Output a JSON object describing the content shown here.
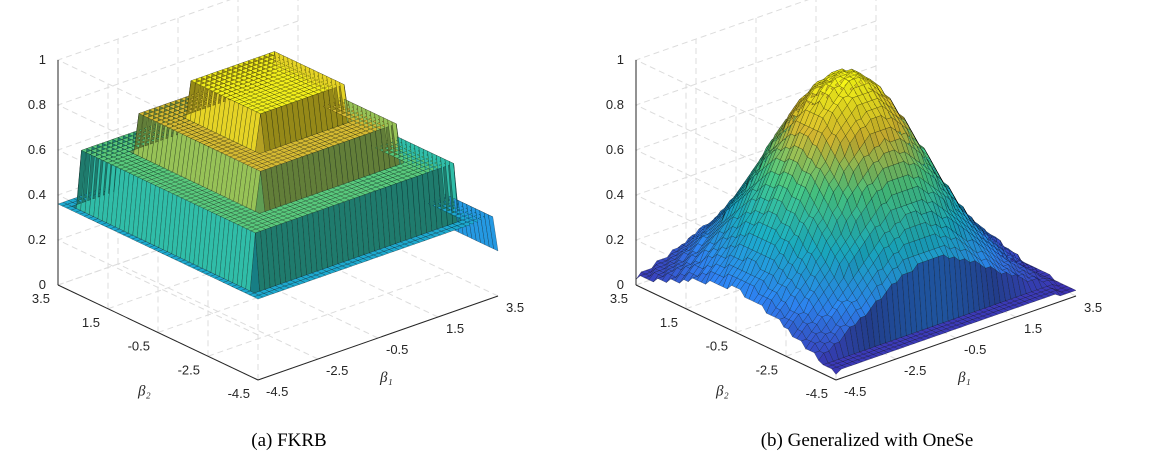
{
  "chart_data": [
    {
      "type": "surface",
      "caption": "(a) FKRB",
      "x_label": "β₁",
      "y_label": "β₂",
      "x_ticks": [
        "-4.5",
        "-2.5",
        "-0.5",
        "1.5",
        "3.5"
      ],
      "y_ticks": [
        "-4.5",
        "-2.5",
        "-0.5",
        "1.5",
        "3.5"
      ],
      "z_ticks": [
        "0",
        "0.2",
        "0.4",
        "0.6",
        "0.8",
        "1"
      ],
      "xlim": [
        -4.5,
        3.5
      ],
      "ylim": [
        -4.5,
        3.5
      ],
      "zlim": [
        0,
        1
      ],
      "grid": true,
      "colormap": [
        "#3e26a8",
        "#2e87f7",
        "#1ab0c7",
        "#48cb86",
        "#d8ba30",
        "#f9fb15"
      ],
      "surface_style": "stepped plateaus"
    },
    {
      "type": "surface",
      "caption": "(b) Generalized with OneSe",
      "x_label": "β₁",
      "y_label": "β₂",
      "x_ticks": [
        "-4.5",
        "-2.5",
        "-0.5",
        "1.5",
        "3.5"
      ],
      "y_ticks": [
        "-4.5",
        "-2.5",
        "-0.5",
        "1.5",
        "3.5"
      ],
      "z_ticks": [
        "0",
        "0.2",
        "0.4",
        "0.6",
        "0.8",
        "1"
      ],
      "xlim": [
        -4.5,
        3.5
      ],
      "ylim": [
        -4.5,
        3.5
      ],
      "zlim": [
        0,
        1
      ],
      "grid": true,
      "colormap": [
        "#3e26a8",
        "#2e87f7",
        "#1ab0c7",
        "#48cb86",
        "#d8ba30",
        "#f9fb15"
      ],
      "surface_style": "smooth peak"
    }
  ]
}
